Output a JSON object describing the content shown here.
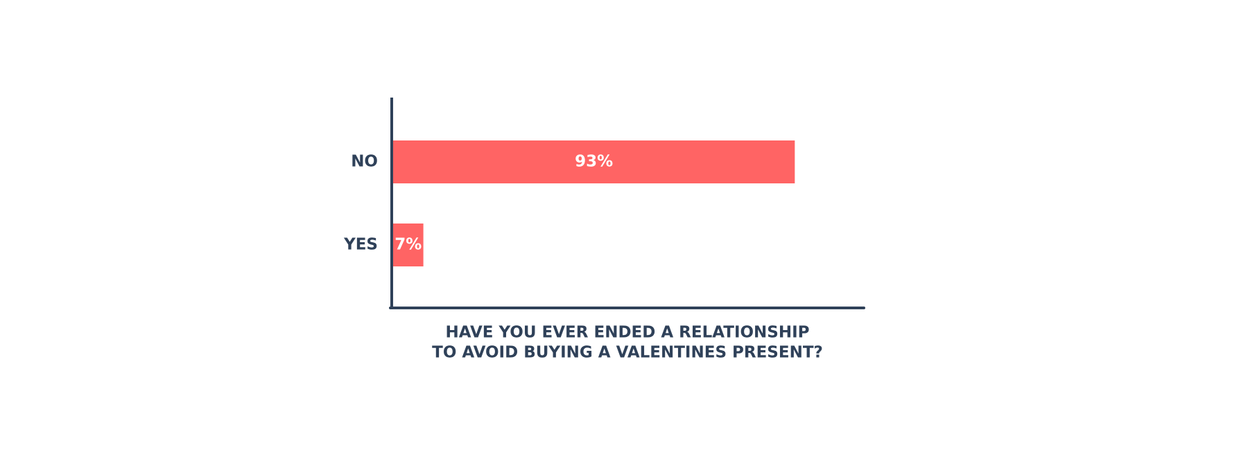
{
  "chart_data": {
    "type": "hbar",
    "categories": [
      "NO",
      "YES"
    ],
    "values": [
      93,
      7
    ],
    "value_labels": [
      "93%",
      "7%"
    ],
    "color": "#ff6464",
    "xlim": [
      0,
      109
    ],
    "xlabel": [
      "HAVE YOU EVER ENDED A RELATIONSHIP",
      "TO AVOID BUYING A VALENTINES PRESENT?"
    ]
  }
}
